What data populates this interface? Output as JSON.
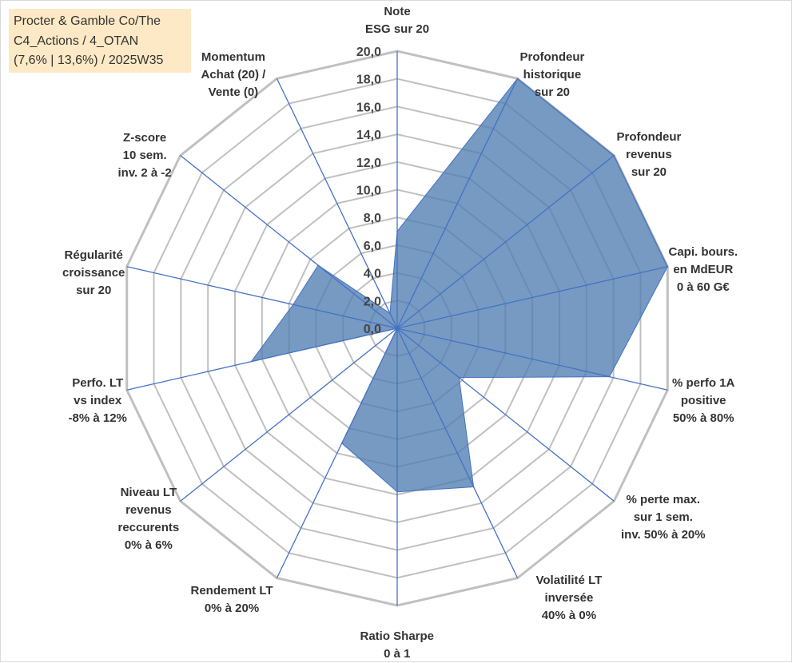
{
  "info_box": {
    "lines": [
      "Procter & Gamble Co/The",
      "C4_Actions / 4_OTAN",
      "(7,6% | 13,6%) / 2025W35"
    ],
    "background": "#fde9c5"
  },
  "chart_data": {
    "type": "radar",
    "title": "",
    "rmin": 0,
    "rmax": 20,
    "tick_step": 2,
    "tick_labels": [
      "0,0",
      "2,0",
      "4,0",
      "6,0",
      "8,0",
      "10,0",
      "12,0",
      "14,0",
      "16,0",
      "18,0",
      "20,0"
    ],
    "grid": true,
    "axes": [
      {
        "lines": [
          "Note",
          "ESG sur 20"
        ]
      },
      {
        "lines": [
          "Profondeur",
          "historique",
          "sur 20"
        ]
      },
      {
        "lines": [
          "Profondeur",
          "revenus",
          "sur 20"
        ]
      },
      {
        "lines": [
          "Capi. bours.",
          "en MdEUR",
          "0 à 60 G€"
        ]
      },
      {
        "lines": [
          "% perfo 1A",
          "positive",
          "50% à 80%"
        ]
      },
      {
        "lines": [
          "% perte max.",
          "sur 1 sem.",
          "inv. 50% à 20%"
        ]
      },
      {
        "lines": [
          "Volatilité LT",
          "inversée",
          "40% à 0%"
        ]
      },
      {
        "lines": [
          "Ratio Sharpe",
          "0 à 1"
        ]
      },
      {
        "lines": [
          "Rendement LT",
          "0% à 20%"
        ]
      },
      {
        "lines": [
          "Niveau LT",
          "revenus",
          "reccurents",
          "0% à 6%"
        ]
      },
      {
        "lines": [
          "Perfo. LT",
          "vs index",
          "-8% à 12%"
        ]
      },
      {
        "lines": [
          "Régularité",
          "croissance",
          "sur 20"
        ]
      },
      {
        "lines": [
          "Z-score",
          "10 sem.",
          "inv. 2 à -2"
        ]
      },
      {
        "lines": [
          "Momentum",
          "Achat (20) /",
          "Vente (0)"
        ]
      }
    ],
    "series": [
      {
        "values": [
          7.0,
          20.0,
          20.0,
          20.0,
          15.7,
          5.7,
          12.7,
          11.8,
          9.2,
          0.0,
          10.8,
          7.7,
          7.3,
          1.2
        ],
        "fill": "#4f7db1",
        "stroke": "#4472c4"
      }
    ],
    "colors": {
      "grid": "#c0c0c0",
      "spoke": "#4472c4"
    }
  }
}
